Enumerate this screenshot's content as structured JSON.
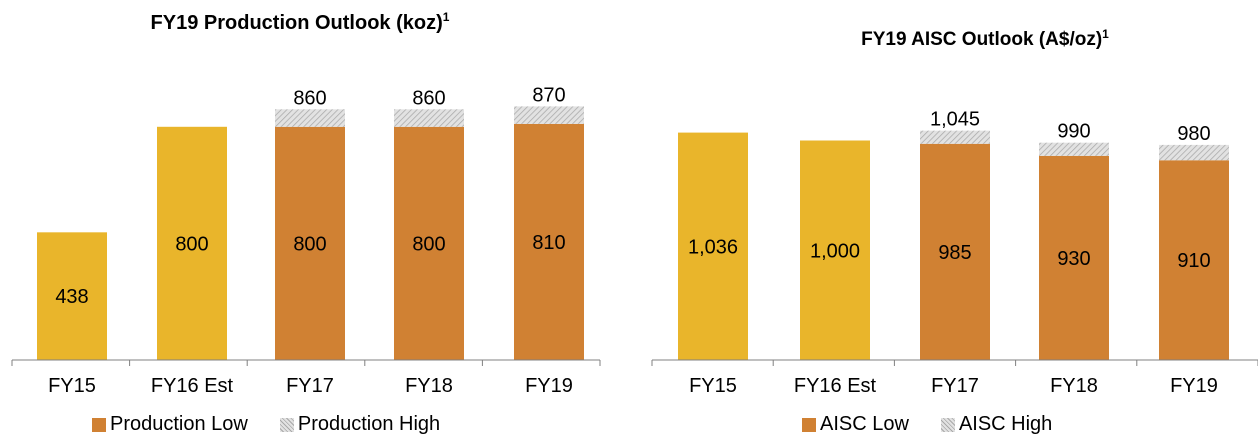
{
  "colors": {
    "gold": "#E9B52B",
    "orange": "#D08133",
    "hatch_light": "#e2e2e2",
    "hatch_dark": "#a9a9a9",
    "axis": "#808080"
  },
  "chart_data": [
    {
      "type": "bar",
      "title": "FY19 Production Outlook (koz)",
      "title_sup": "1",
      "categories": [
        "FY15",
        "FY16 Est",
        "FY17",
        "FY18",
        "FY19"
      ],
      "series": [
        {
          "name": "Production Low",
          "values": [
            438,
            800,
            800,
            800,
            810
          ],
          "value_labels": [
            "438",
            "800",
            "800",
            "800",
            "810"
          ]
        },
        {
          "name": "Production High",
          "values": [
            null,
            null,
            860,
            860,
            870
          ],
          "value_labels": [
            "",
            "",
            "860",
            "860",
            "870"
          ]
        }
      ],
      "bar_colors": [
        "gold",
        "gold",
        "orange",
        "orange",
        "orange"
      ],
      "legend": [
        "Production Low",
        "Production High"
      ],
      "legend_position": "bottom",
      "ylim": [
        0,
        1000
      ],
      "grid": false
    },
    {
      "type": "bar",
      "title": "FY19 AISC Outlook (A$/oz)",
      "title_sup": "1",
      "categories": [
        "FY15",
        "FY16 Est",
        "FY17",
        "FY18",
        "FY19"
      ],
      "series": [
        {
          "name": "AISC Low",
          "values": [
            1036,
            1000,
            985,
            930,
            910
          ],
          "value_labels": [
            "1,036",
            "1,000",
            "985",
            "930",
            "910"
          ]
        },
        {
          "name": "AISC High",
          "values": [
            null,
            null,
            1045,
            990,
            980
          ],
          "value_labels": [
            "",
            "",
            "1,045",
            "990",
            "980"
          ]
        }
      ],
      "bar_colors": [
        "gold",
        "gold",
        "orange",
        "orange",
        "orange"
      ],
      "legend": [
        "AISC Low",
        "AISC High"
      ],
      "legend_position": "bottom",
      "ylim": [
        0,
        1200
      ],
      "grid": false
    }
  ]
}
